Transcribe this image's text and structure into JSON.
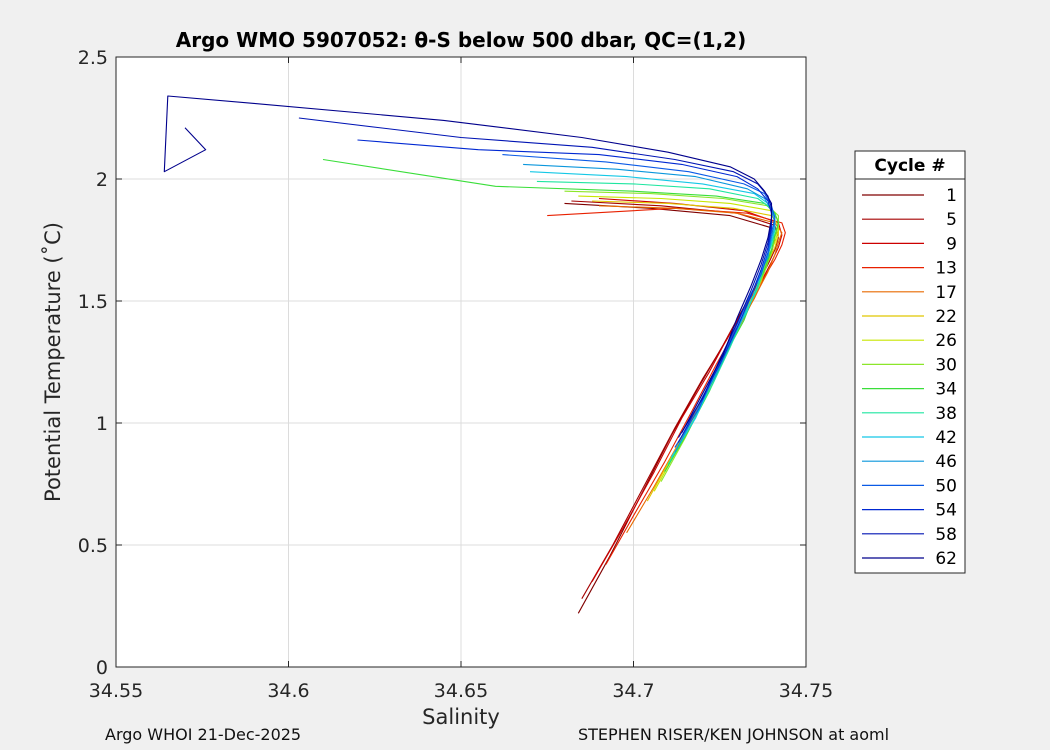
{
  "chart_data": {
    "type": "line",
    "title": "Argo WMO 5907052: θ-S below 500 dbar,  QC=(1,2)",
    "xlabel": "Salinity",
    "ylabel": "Potential Temperature (˚C)",
    "xlim": [
      34.55,
      34.75
    ],
    "ylim": [
      0,
      2.5
    ],
    "xticks": [
      34.55,
      34.6,
      34.65,
      34.7,
      34.75
    ],
    "xtick_labels": [
      "34.55",
      "34.6",
      "34.65",
      "34.7",
      "34.75"
    ],
    "yticks": [
      0,
      0.5,
      1,
      1.5,
      2,
      2.5
    ],
    "ytick_labels": [
      "0",
      "0.5",
      "1",
      "1.5",
      "2",
      "2.5"
    ],
    "grid": true,
    "legend_title": "Cycle #",
    "legend_position": "outside-right",
    "series": [
      {
        "name": "1",
        "color": "#800000",
        "x": [
          34.684,
          34.693,
          34.702,
          34.711,
          34.719,
          34.726,
          34.731,
          34.735,
          34.738,
          34.74,
          34.741,
          34.74,
          34.728,
          34.705,
          34.68
        ],
        "y": [
          0.22,
          0.45,
          0.7,
          0.95,
          1.15,
          1.32,
          1.45,
          1.55,
          1.63,
          1.7,
          1.75,
          1.8,
          1.85,
          1.88,
          1.9
        ]
      },
      {
        "name": "5",
        "color": "#a50000",
        "x": [
          34.685,
          34.694,
          34.703,
          34.712,
          34.72,
          34.727,
          34.732,
          34.736,
          34.739,
          34.741,
          34.742,
          34.741,
          34.73,
          34.708,
          34.682
        ],
        "y": [
          0.28,
          0.5,
          0.74,
          0.98,
          1.18,
          1.34,
          1.47,
          1.57,
          1.65,
          1.71,
          1.76,
          1.81,
          1.86,
          1.89,
          1.91
        ]
      },
      {
        "name": "9",
        "color": "#cc0000",
        "x": [
          34.688,
          34.697,
          34.706,
          34.714,
          34.722,
          34.728,
          34.733,
          34.737,
          34.74,
          34.742,
          34.743,
          34.742,
          34.732,
          34.712,
          34.69
        ],
        "y": [
          0.35,
          0.57,
          0.8,
          1.02,
          1.21,
          1.37,
          1.49,
          1.58,
          1.66,
          1.72,
          1.77,
          1.82,
          1.87,
          1.9,
          1.92
        ]
      },
      {
        "name": "13",
        "color": "#e82000",
        "x": [
          34.692,
          34.7,
          34.709,
          34.717,
          34.724,
          34.73,
          34.735,
          34.738,
          34.741,
          34.743,
          34.744,
          34.743,
          34.733,
          34.712,
          34.675
        ],
        "y": [
          0.42,
          0.62,
          0.84,
          1.05,
          1.24,
          1.39,
          1.51,
          1.6,
          1.67,
          1.73,
          1.78,
          1.82,
          1.86,
          1.88,
          1.85
        ]
      },
      {
        "name": "17",
        "color": "#e86a00",
        "x": [
          34.698,
          34.706,
          34.714,
          34.721,
          34.727,
          34.732,
          34.736,
          34.739,
          34.741,
          34.742,
          34.743,
          34.741,
          34.73,
          34.712,
          34.69
        ],
        "y": [
          0.55,
          0.74,
          0.94,
          1.13,
          1.3,
          1.43,
          1.54,
          1.62,
          1.69,
          1.74,
          1.78,
          1.82,
          1.86,
          1.88,
          1.89
        ]
      },
      {
        "name": "22",
        "color": "#e0c800",
        "x": [
          34.704,
          34.711,
          34.718,
          34.724,
          34.729,
          34.733,
          34.737,
          34.739,
          34.741,
          34.742,
          34.742,
          34.74,
          34.729,
          34.71,
          34.688
        ],
        "y": [
          0.68,
          0.86,
          1.04,
          1.21,
          1.36,
          1.48,
          1.58,
          1.66,
          1.72,
          1.77,
          1.81,
          1.85,
          1.88,
          1.9,
          1.91
        ]
      },
      {
        "name": "26",
        "color": "#c8e600",
        "x": [
          34.706,
          34.713,
          34.72,
          34.725,
          34.73,
          34.734,
          34.737,
          34.739,
          34.741,
          34.742,
          34.742,
          34.74,
          34.728,
          34.708,
          34.684
        ],
        "y": [
          0.72,
          0.9,
          1.08,
          1.24,
          1.38,
          1.5,
          1.6,
          1.68,
          1.74,
          1.79,
          1.83,
          1.87,
          1.9,
          1.92,
          1.93
        ]
      },
      {
        "name": "30",
        "color": "#8ce62a",
        "x": [
          34.708,
          34.715,
          34.721,
          34.726,
          34.731,
          34.735,
          34.738,
          34.74,
          34.741,
          34.742,
          34.742,
          34.739,
          34.726,
          34.705,
          34.68
        ],
        "y": [
          0.76,
          0.94,
          1.11,
          1.27,
          1.41,
          1.52,
          1.62,
          1.7,
          1.76,
          1.81,
          1.85,
          1.89,
          1.92,
          1.94,
          1.95
        ]
      },
      {
        "name": "34",
        "color": "#3ade3a",
        "x": [
          34.709,
          34.716,
          34.722,
          34.727,
          34.732,
          34.735,
          34.738,
          34.74,
          34.741,
          34.742,
          34.741,
          34.738,
          34.724,
          34.7,
          34.66,
          34.61
        ],
        "y": [
          0.8,
          0.97,
          1.13,
          1.29,
          1.42,
          1.53,
          1.63,
          1.71,
          1.77,
          1.82,
          1.86,
          1.9,
          1.93,
          1.95,
          1.97,
          2.08
        ]
      },
      {
        "name": "38",
        "color": "#1ee6a0",
        "x": [
          34.71,
          34.717,
          34.723,
          34.728,
          34.732,
          34.736,
          34.738,
          34.74,
          34.741,
          34.741,
          34.74,
          34.736,
          34.722,
          34.7,
          34.672
        ],
        "y": [
          0.83,
          1.0,
          1.16,
          1.31,
          1.44,
          1.55,
          1.65,
          1.73,
          1.79,
          1.84,
          1.88,
          1.92,
          1.96,
          1.98,
          1.99
        ]
      },
      {
        "name": "42",
        "color": "#14c8e6",
        "x": [
          34.711,
          34.718,
          34.723,
          34.728,
          34.733,
          34.736,
          34.738,
          34.74,
          34.741,
          34.741,
          34.739,
          34.735,
          34.72,
          34.698,
          34.67
        ],
        "y": [
          0.86,
          1.02,
          1.18,
          1.33,
          1.46,
          1.57,
          1.66,
          1.74,
          1.8,
          1.85,
          1.9,
          1.94,
          1.98,
          2.01,
          2.03
        ]
      },
      {
        "name": "46",
        "color": "#0a96dc",
        "x": [
          34.712,
          34.718,
          34.724,
          34.729,
          34.733,
          34.736,
          34.739,
          34.74,
          34.741,
          34.74,
          34.738,
          34.733,
          34.718,
          34.695,
          34.668
        ],
        "y": [
          0.88,
          1.04,
          1.2,
          1.35,
          1.48,
          1.59,
          1.68,
          1.76,
          1.82,
          1.87,
          1.92,
          1.96,
          2.01,
          2.04,
          2.06
        ]
      },
      {
        "name": "50",
        "color": "#0a5ae6",
        "x": [
          34.712,
          34.719,
          34.724,
          34.729,
          34.733,
          34.737,
          34.739,
          34.74,
          34.741,
          34.74,
          34.738,
          34.732,
          34.716,
          34.692,
          34.662
        ],
        "y": [
          0.9,
          1.06,
          1.22,
          1.37,
          1.5,
          1.61,
          1.7,
          1.78,
          1.84,
          1.89,
          1.94,
          1.98,
          2.03,
          2.07,
          2.1
        ]
      },
      {
        "name": "54",
        "color": "#0028d2",
        "x": [
          34.713,
          34.719,
          34.725,
          34.73,
          34.734,
          34.737,
          34.739,
          34.74,
          34.74,
          34.739,
          34.736,
          34.73,
          34.714,
          34.69,
          34.655,
          34.62
        ],
        "y": [
          0.92,
          1.08,
          1.24,
          1.39,
          1.52,
          1.63,
          1.72,
          1.8,
          1.86,
          1.91,
          1.96,
          2.01,
          2.06,
          2.1,
          2.12,
          2.16
        ]
      },
      {
        "name": "58",
        "color": "#0014b4",
        "x": [
          34.713,
          34.72,
          34.725,
          34.73,
          34.734,
          34.737,
          34.739,
          34.74,
          34.74,
          34.739,
          34.736,
          34.729,
          34.712,
          34.688,
          34.65,
          34.603
        ],
        "y": [
          0.94,
          1.1,
          1.26,
          1.41,
          1.54,
          1.65,
          1.74,
          1.82,
          1.88,
          1.93,
          1.98,
          2.03,
          2.08,
          2.13,
          2.17,
          2.25
        ]
      },
      {
        "name": "62",
        "color": "#00008c",
        "x": [
          34.714,
          34.72,
          34.726,
          34.73,
          34.734,
          34.737,
          34.739,
          34.74,
          34.74,
          34.738,
          34.735,
          34.728,
          34.71,
          34.685,
          34.645,
          34.59,
          34.565,
          34.564,
          34.576,
          34.57
        ],
        "y": [
          0.96,
          1.12,
          1.28,
          1.43,
          1.56,
          1.67,
          1.76,
          1.84,
          1.9,
          1.95,
          2.0,
          2.05,
          2.11,
          2.17,
          2.24,
          2.31,
          2.34,
          2.03,
          2.12,
          2.21
        ]
      }
    ]
  },
  "footer": {
    "left": "Argo WHOI 21-Dec-2025",
    "right": "STEPHEN RISER/KEN JOHNSON at aoml"
  }
}
